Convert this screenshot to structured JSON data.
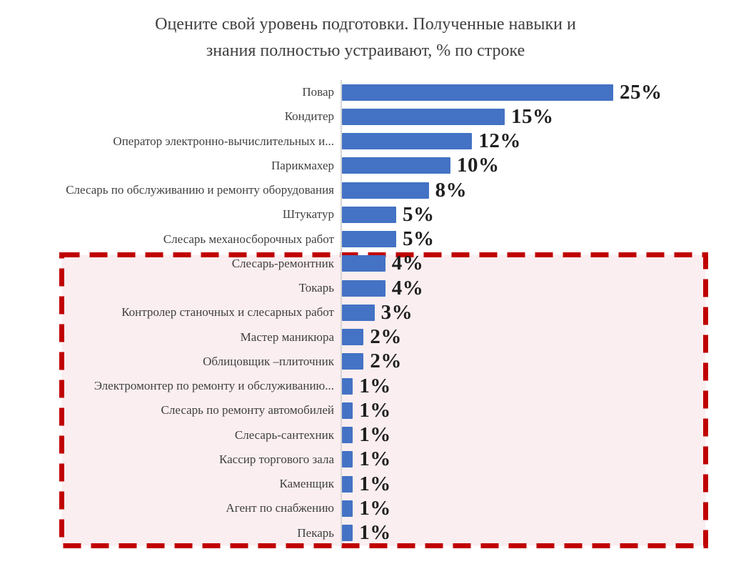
{
  "header": {
    "title_lines": [
      "Оцените свой уровень подготовки. Полученные навыки и",
      "знания полностью устраивают, % по строке"
    ]
  },
  "chart_data": {
    "type": "bar",
    "orientation": "horizontal",
    "title": "Оцените свой уровень подготовки. Полученные навыки и знания полностью устраивают, % по строке",
    "xlabel": "",
    "ylabel": "",
    "xlim": [
      0,
      25
    ],
    "grid": false,
    "legend": "none",
    "value_suffix": "%",
    "bar_color": "#4472C4",
    "axis_line_color": "#d6d6d6",
    "categories": [
      "Повар",
      "Кондитер",
      "Оператор электронно-вычислительных и...",
      "Парикмахер",
      "Слесарь по обслуживанию и ремонту оборудования",
      "Штукатур",
      "Слесарь механосборочных работ",
      "Слесарь-ремонтник",
      "Токарь",
      "Контролер станочных и слесарных работ",
      "Мастер маникюра",
      "Облицовщик –плиточник",
      "Электромонтер по ремонту и обслуживанию...",
      "Слесарь по ремонту автомобилей",
      "Слесарь-сантехник",
      "Кассир торгового зала",
      "Каменщик",
      "Агент по снабжению",
      "Пекарь"
    ],
    "values": [
      25,
      15,
      12,
      10,
      8,
      5,
      5,
      4,
      4,
      3,
      2,
      2,
      1,
      1,
      1,
      1,
      1,
      1,
      1
    ],
    "data_labels": [
      "25%",
      "15%",
      "12%",
      "10%",
      "8%",
      "5%",
      "5%",
      "4%",
      "4%",
      "3%",
      "2%",
      "2%",
      "1%",
      "1%",
      "1%",
      "1%",
      "1%",
      "1%",
      "1%"
    ],
    "highlight": {
      "style": "dashed-box",
      "border_color": "#C00000",
      "fill_color": "#FAEEF0",
      "from_category": "Слесарь-ремонтник",
      "to_category": "Пекарь",
      "categories_inside": [
        "Слесарь-ремонтник",
        "Токарь",
        "Контролер станочных и слесарных работ",
        "Мастер маникюра",
        "Облицовщик –плиточник",
        "Электромонтер по ремонту и обслуживанию...",
        "Слесарь по ремонту автомобилей",
        "Слесарь-сантехник",
        "Кассир торгового зала",
        "Каменщик",
        "Агент по снабжению",
        "Пекарь"
      ]
    }
  }
}
